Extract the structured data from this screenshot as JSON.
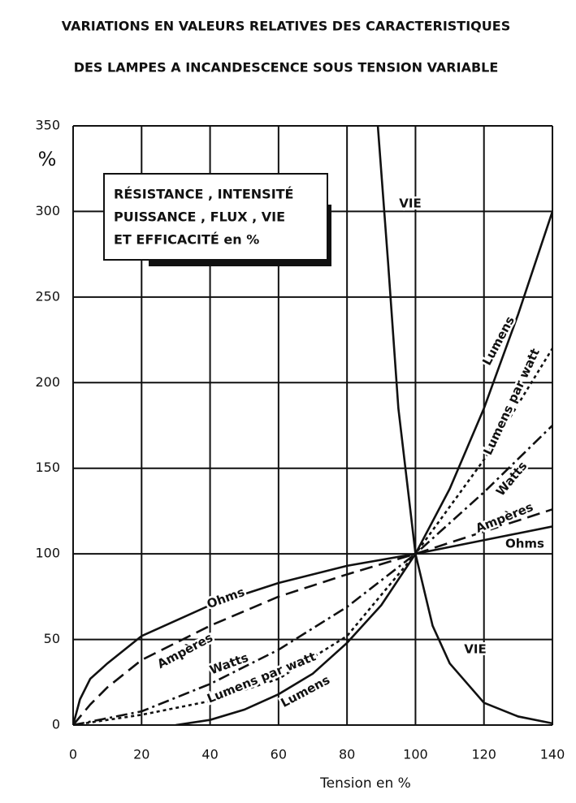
{
  "chart_data": {
    "type": "line",
    "title": [
      "VARIATIONS EN VALEURS RELATIVES DES CARACTERISTIQUES",
      "DES LAMPES A INCANDESCENCE SOUS TENSION VARIABLE"
    ],
    "annotation": [
      "RÉSISTANCE , INTENSITÉ",
      "PUISSANCE , FLUX , VIE",
      "ET EFFICACITÉ en %"
    ],
    "xlabel": "Tension en %",
    "ylabel": "%",
    "xlim": [
      0,
      140
    ],
    "ylim": [
      0,
      350
    ],
    "xticks": [
      0,
      20,
      40,
      60,
      80,
      100,
      120,
      140
    ],
    "yticks": [
      0,
      50,
      100,
      150,
      200,
      250,
      300,
      350
    ],
    "grid": true,
    "series": [
      {
        "name": "VIE",
        "color": "#111111",
        "style": "solid",
        "x": [
          89,
          92,
          95,
          100,
          105,
          110,
          120,
          130,
          140
        ],
        "values": [
          350,
          270,
          185,
          100,
          58,
          36,
          13,
          5,
          1
        ]
      },
      {
        "name": "Lumens",
        "color": "#111111",
        "style": "solid",
        "x": [
          30,
          40,
          50,
          60,
          70,
          80,
          90,
          100,
          110,
          120,
          130,
          140
        ],
        "values": [
          0,
          3,
          9,
          18,
          30,
          48,
          70,
          100,
          138,
          185,
          240,
          300
        ]
      },
      {
        "name": "Lumens par watt",
        "color": "#111111",
        "style": "dotted",
        "x": [
          0,
          20,
          40,
          60,
          80,
          100,
          120,
          140
        ],
        "values": [
          0,
          6,
          14,
          27,
          52,
          100,
          155,
          220
        ]
      },
      {
        "name": "Watts",
        "color": "#111111",
        "style": "dashdot",
        "x": [
          0,
          20,
          40,
          60,
          80,
          100,
          120,
          140
        ],
        "values": [
          0,
          8,
          24,
          44,
          69,
          100,
          136,
          175
        ]
      },
      {
        "name": "Ampères",
        "color": "#111111",
        "style": "dashed",
        "x": [
          0,
          5,
          10,
          20,
          40,
          60,
          80,
          100,
          120,
          140
        ],
        "values": [
          0,
          12,
          22,
          38,
          58,
          75,
          88,
          100,
          113,
          126
        ]
      },
      {
        "name": "Ohms",
        "color": "#111111",
        "style": "solid",
        "x": [
          0,
          2,
          5,
          10,
          20,
          40,
          60,
          80,
          100,
          120,
          140
        ],
        "values": [
          0,
          15,
          27,
          36,
          52,
          70,
          83,
          93,
          100,
          108,
          116
        ]
      }
    ]
  }
}
